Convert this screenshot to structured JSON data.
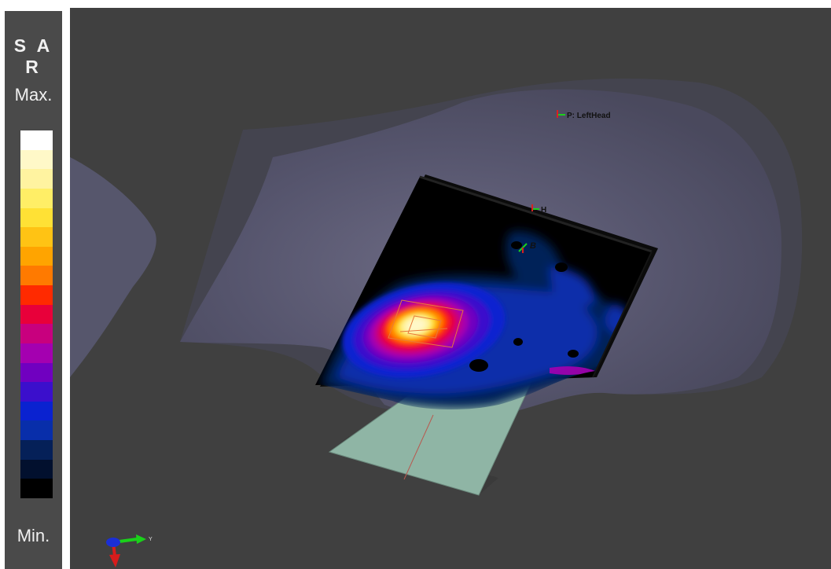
{
  "legend": {
    "title": "S A R",
    "max_label": "Max.",
    "min_label": "Min.",
    "colors": [
      "#ffffff",
      "#fff8c8",
      "#fff3a0",
      "#ffee66",
      "#ffe135",
      "#ffc314",
      "#ffa400",
      "#ff7a00",
      "#ff2a00",
      "#e8003a",
      "#c8007e",
      "#a400b0",
      "#7000c0",
      "#3b0fcc",
      "#0a22d0",
      "#082eaa",
      "#052058",
      "#02102e",
      "#000000"
    ]
  },
  "viewport": {
    "background": "#404040",
    "markers": {
      "lefthead_label": "P: LeftHead",
      "h_label": "H",
      "b_label": "B"
    },
    "axis_triad": {
      "y_label": "Y"
    }
  }
}
